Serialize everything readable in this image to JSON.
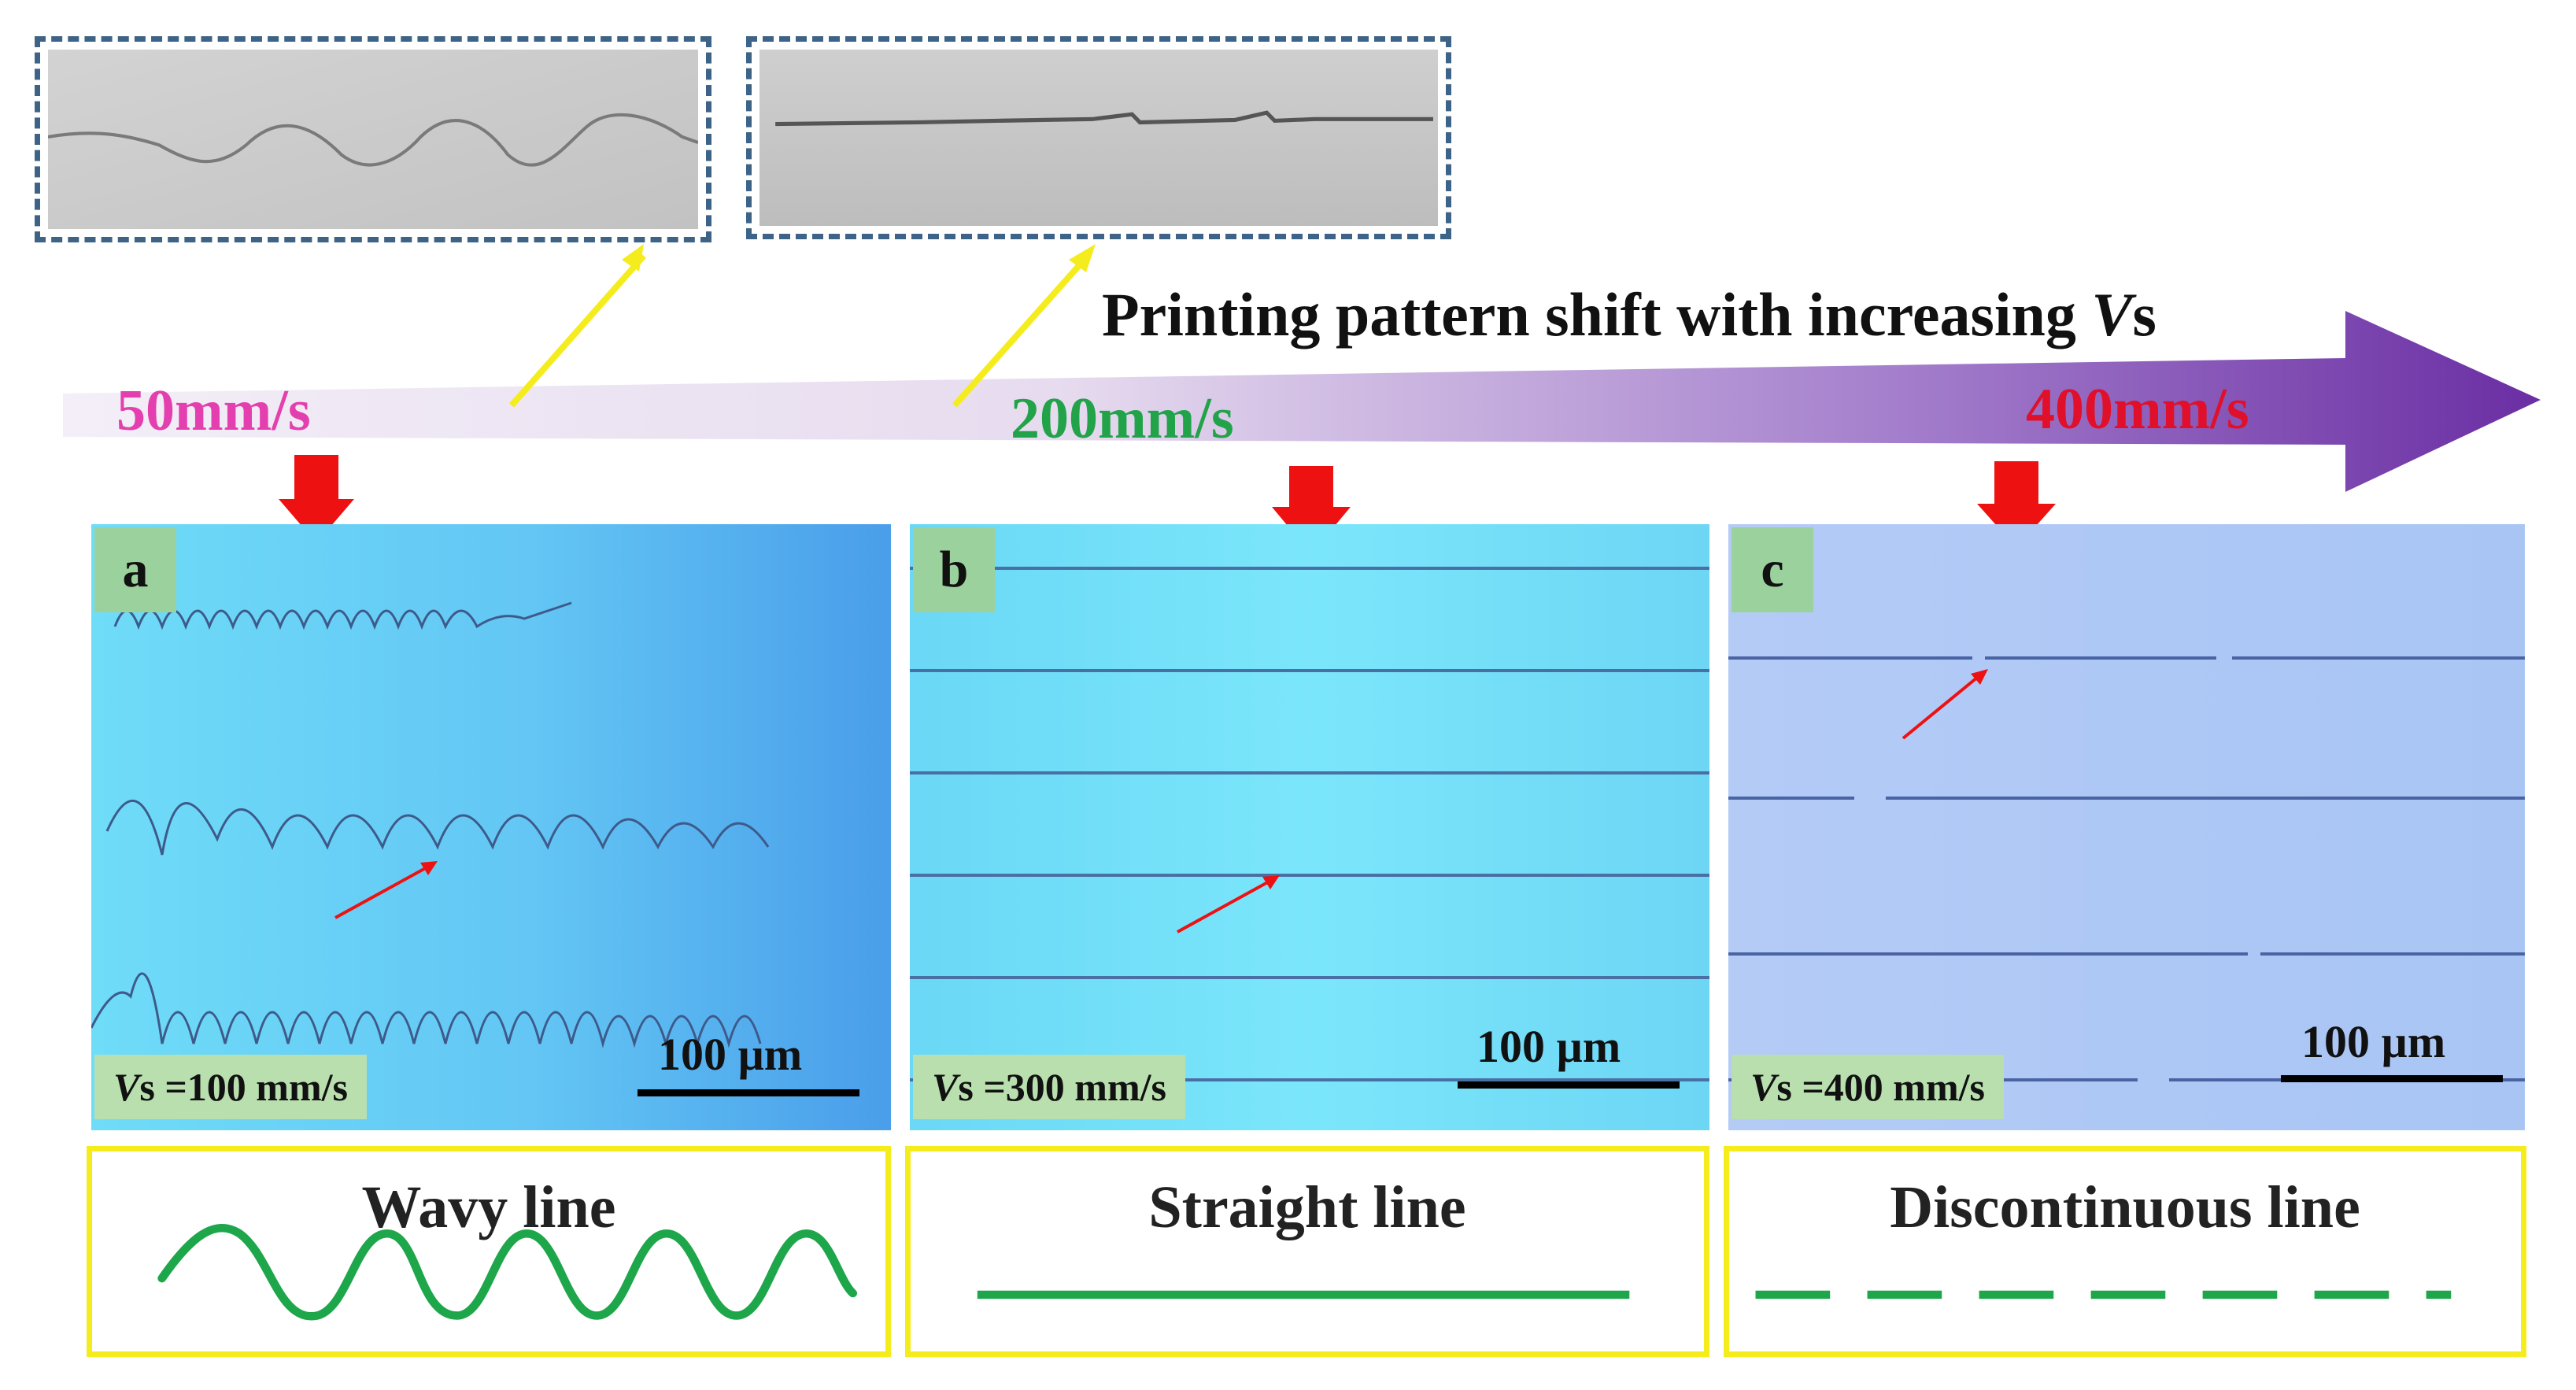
{
  "arrow": {
    "title_prefix": "Printing pattern shift with increasing ",
    "title_var": "V",
    "title_suffix": "s",
    "speeds": [
      {
        "label": "50mm/s",
        "color": "#e43fae"
      },
      {
        "label": "200mm/s",
        "color": "#22a34a"
      },
      {
        "label": "400mm/s",
        "color": "#e0102a"
      }
    ],
    "gradient_start": "#f2edf6",
    "gradient_end": "#6a2ea3"
  },
  "panels": [
    {
      "letter": "a",
      "var": "V",
      "speed_text": "s =100 mm/s",
      "scale": "100 µm",
      "bg_start": "#6fdcf8",
      "bg_end": "#4aa4ec"
    },
    {
      "letter": "b",
      "var": "V",
      "speed_text": "s =300 mm/s",
      "scale": "100 µm",
      "bg_start": "#6fdaf6",
      "bg_end": "#7fe8fb"
    },
    {
      "letter": "c",
      "var": "V",
      "speed_text": "s =400 mm/s",
      "scale": "100 µm",
      "bg_start": "#b6cdf6",
      "bg_end": "#a9c6f5"
    }
  ],
  "schematics": [
    {
      "title": "Wavy line"
    },
    {
      "title": "Straight line"
    },
    {
      "title": "Discontinuous line"
    }
  ],
  "colors": {
    "pointer": "#f5ec1d",
    "down_arrow": "#ee1111",
    "schematic_line": "#1ea64a",
    "box_border": "#f5ec1d"
  }
}
